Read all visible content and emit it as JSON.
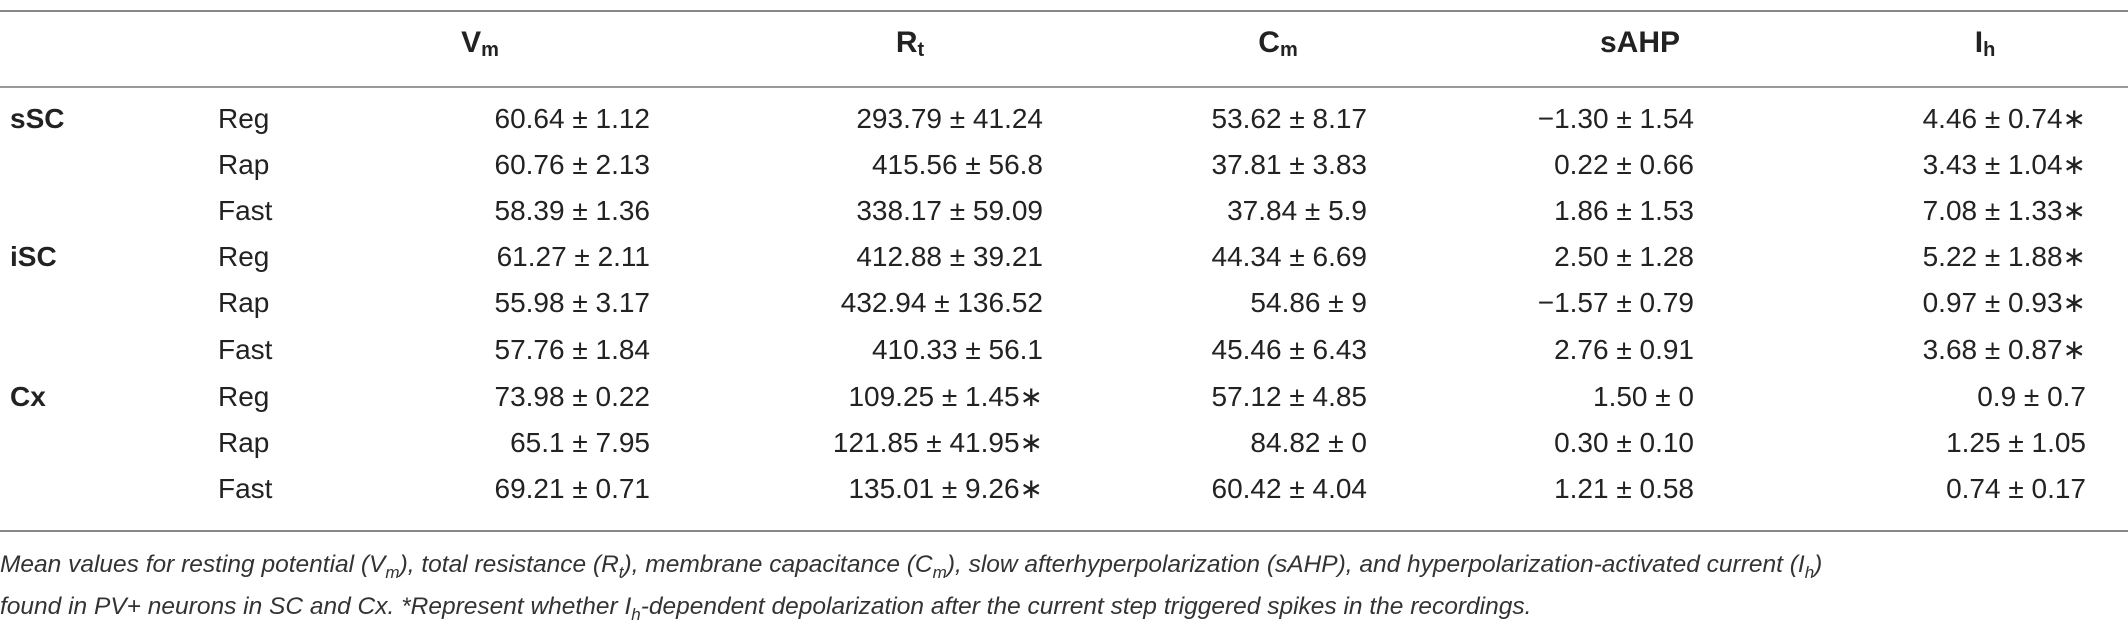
{
  "table": {
    "headers": [
      {
        "base": "V",
        "sub": "m"
      },
      {
        "base": "R",
        "sub": "t"
      },
      {
        "base": "C",
        "sub": "m"
      },
      {
        "base": "sAHP",
        "sub": ""
      },
      {
        "base": "I",
        "sub": "h"
      }
    ],
    "rows": [
      {
        "group": "sSC",
        "type": "Reg",
        "cells": [
          "60.64 ± 1.12",
          "293.79 ± 41.24",
          "53.62 ± 8.17",
          "−1.30 ± 1.54",
          "4.46 ± 0.74∗"
        ]
      },
      {
        "group": "",
        "type": "Rap",
        "cells": [
          "60.76 ± 2.13",
          "415.56 ± 56.8",
          "37.81 ± 3.83",
          "0.22 ± 0.66",
          "3.43 ± 1.04∗"
        ]
      },
      {
        "group": "",
        "type": "Fast",
        "cells": [
          "58.39 ± 1.36",
          "338.17 ± 59.09",
          "37.84 ± 5.9",
          "1.86 ± 1.53",
          "7.08 ± 1.33∗"
        ]
      },
      {
        "group": "iSC",
        "type": "Reg",
        "cells": [
          "61.27 ± 2.11",
          "412.88 ± 39.21",
          "44.34 ± 6.69",
          "2.50 ± 1.28",
          "5.22 ± 1.88∗"
        ]
      },
      {
        "group": "",
        "type": "Rap",
        "cells": [
          "55.98 ± 3.17",
          "432.94 ± 136.52",
          "54.86 ± 9",
          "−1.57 ± 0.79",
          "0.97 ± 0.93∗"
        ]
      },
      {
        "group": "",
        "type": "Fast",
        "cells": [
          "57.76 ± 1.84",
          "410.33 ± 56.1",
          "45.46 ± 6.43",
          "2.76 ± 0.91",
          "3.68 ± 0.87∗"
        ]
      },
      {
        "group": "Cx",
        "type": "Reg",
        "cells": [
          "73.98 ± 0.22",
          "109.25 ± 1.45∗",
          "57.12 ± 4.85",
          "1.50 ± 0",
          "0.9 ± 0.7"
        ]
      },
      {
        "group": "",
        "type": "Rap",
        "cells": [
          "65.1 ± 7.95",
          "121.85 ± 41.95∗",
          "84.82 ± 0",
          "0.30 ± 0.10",
          "1.25 ± 1.05"
        ]
      },
      {
        "group": "",
        "type": "Fast",
        "cells": [
          "69.21 ± 0.71",
          "135.01 ± 9.26∗",
          "60.42 ± 4.04",
          "1.21 ± 0.58",
          "0.74 ± 0.17"
        ]
      }
    ]
  },
  "caption": {
    "line1": [
      {
        "t": "Mean values for resting potential (V"
      },
      {
        "s": "m"
      },
      {
        "t": "), total resistance (R"
      },
      {
        "s": "t"
      },
      {
        "t": "), membrane capacitance (C"
      },
      {
        "s": "m"
      },
      {
        "t": "), slow afterhyperpolarization (sAHP), and hyperpolarization-activated current (I"
      },
      {
        "s": "h"
      },
      {
        "t": ")"
      }
    ],
    "line2": [
      {
        "t": "found in PV+ neurons in SC and Cx. *Represent whether I"
      },
      {
        "s": "h"
      },
      {
        "t": "-dependent depolarization after the current step triggered spikes in the recordings."
      }
    ]
  }
}
